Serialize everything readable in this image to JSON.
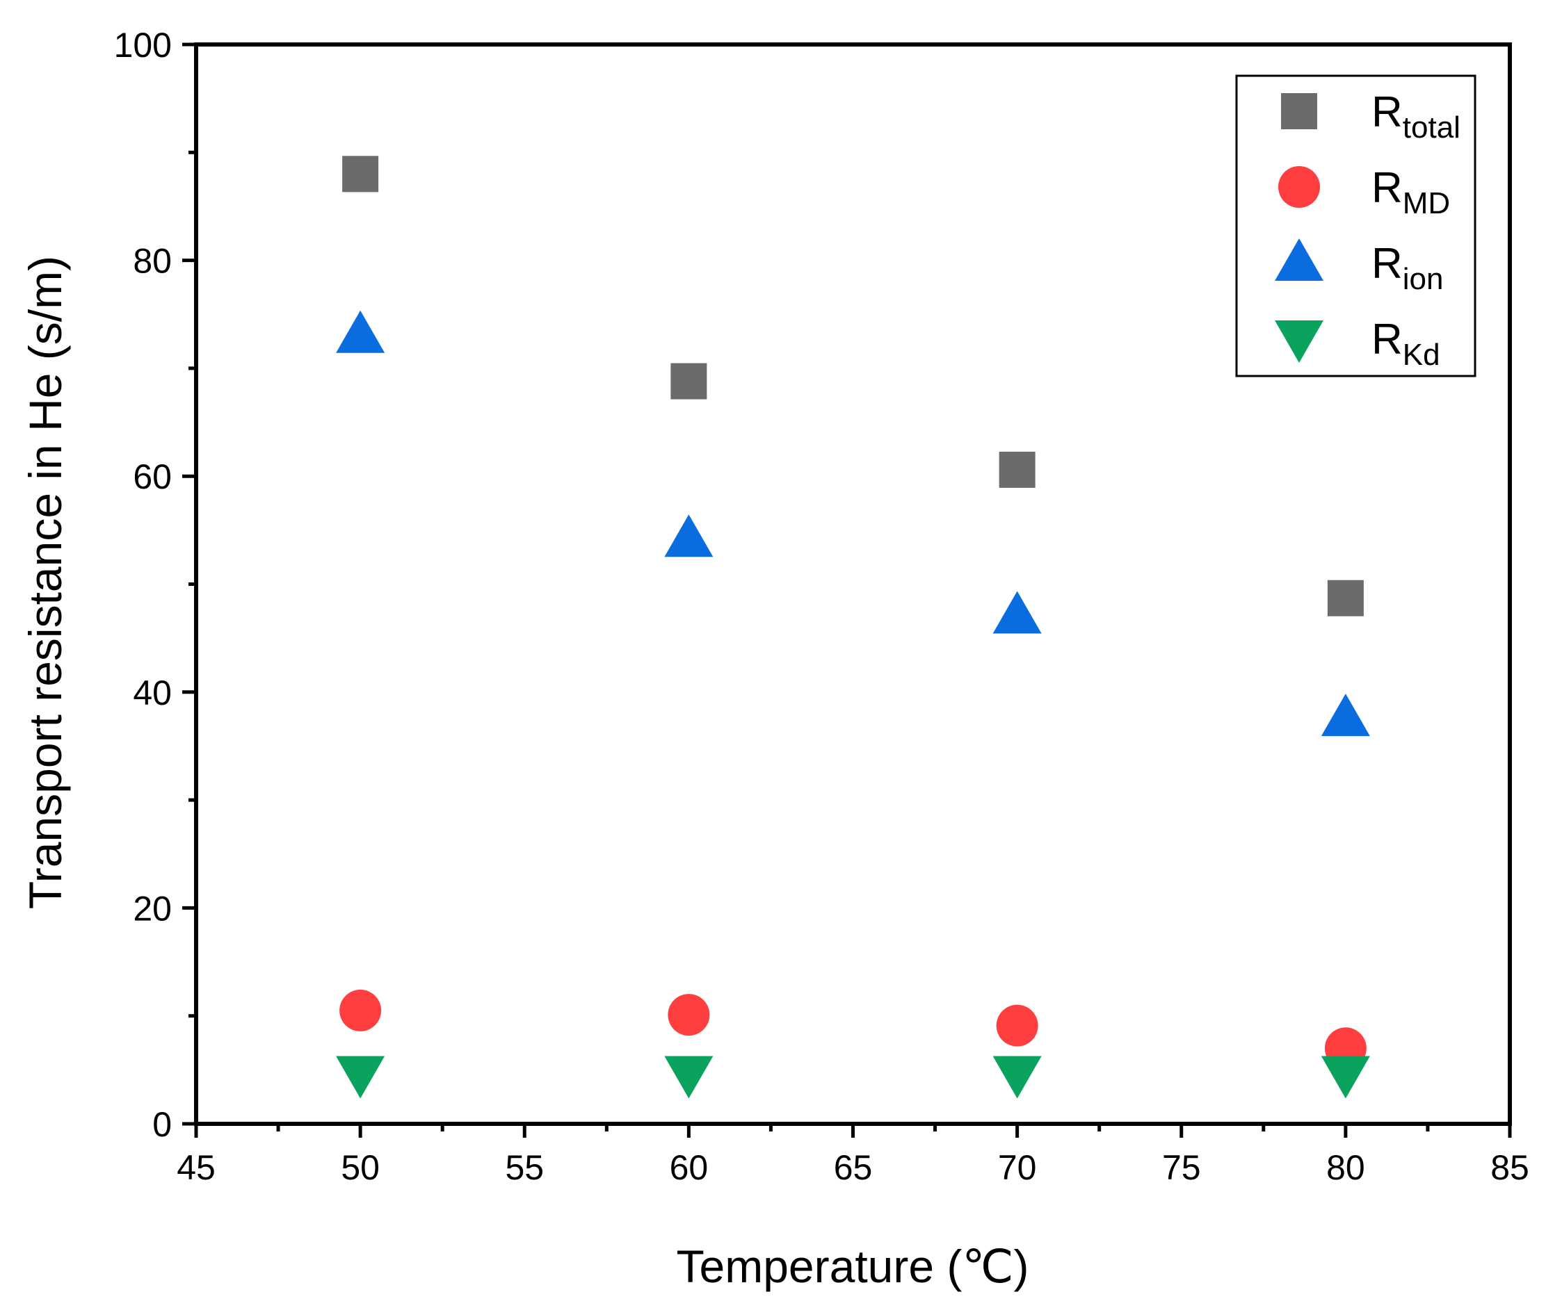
{
  "chart_data": {
    "type": "scatter",
    "title": "",
    "xlabel": "Temperature (℃)",
    "ylabel": "Transport resistance in He (s/m)",
    "xlim": [
      45,
      85
    ],
    "ylim": [
      0,
      100
    ],
    "xticks": [
      45,
      50,
      55,
      60,
      65,
      70,
      75,
      80,
      85
    ],
    "yticks": [
      0,
      20,
      40,
      60,
      80,
      100
    ],
    "grid": false,
    "legend_position": "top-right",
    "x": [
      50,
      60,
      70,
      80
    ],
    "series": [
      {
        "name": "R",
        "subscript": "total",
        "marker": "square",
        "color": "#6b6b6b",
        "values": [
          88,
          68.8,
          60.6,
          48.7
        ]
      },
      {
        "name": "R",
        "subscript": "MD",
        "marker": "circle",
        "color": "#ff3f3f",
        "values": [
          10.5,
          10.1,
          9.1,
          7.0
        ]
      },
      {
        "name": "R",
        "subscript": "ion",
        "marker": "triangle-up",
        "color": "#0a6ddf",
        "values": [
          73.1,
          54.2,
          47.1,
          37.6
        ]
      },
      {
        "name": "R",
        "subscript": "Kd",
        "marker": "triangle-down",
        "color": "#0aa35e",
        "values": [
          4.6,
          4.6,
          4.6,
          4.6
        ]
      }
    ]
  }
}
